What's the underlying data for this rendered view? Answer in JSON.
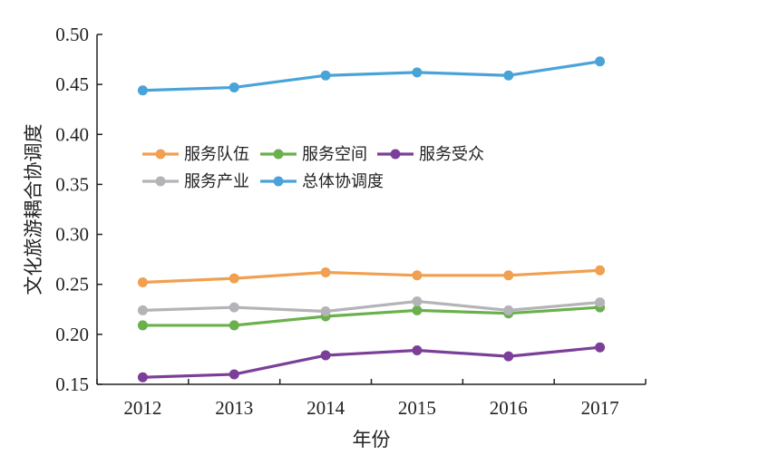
{
  "chart_data": {
    "type": "line",
    "xlabel": "年份",
    "ylabel": "文化旅游耦合协调度",
    "categories": [
      "2012",
      "2013",
      "2014",
      "2015",
      "2016",
      "2017"
    ],
    "ylim": [
      0.15,
      0.5
    ],
    "yticks": [
      "0.15",
      "0.20",
      "0.25",
      "0.30",
      "0.35",
      "0.40",
      "0.45",
      "0.50"
    ],
    "grid": false,
    "legend_position": "center-left",
    "series": [
      {
        "name": "服务队伍",
        "color": "#f0a050",
        "values": [
          0.252,
          0.256,
          0.262,
          0.259,
          0.259,
          0.264
        ]
      },
      {
        "name": "服务空间",
        "color": "#6ab04c",
        "values": [
          0.209,
          0.209,
          0.218,
          0.224,
          0.221,
          0.227
        ]
      },
      {
        "name": "服务受众",
        "color": "#7b3f98",
        "values": [
          0.157,
          0.16,
          0.179,
          0.184,
          0.178,
          0.187
        ]
      },
      {
        "name": "服务产业",
        "color": "#b4b4b8",
        "values": [
          0.224,
          0.227,
          0.223,
          0.233,
          0.224,
          0.232
        ]
      },
      {
        "name": "总体协调度",
        "color": "#4aa3d8",
        "values": [
          0.444,
          0.447,
          0.459,
          0.462,
          0.459,
          0.473
        ]
      }
    ]
  }
}
